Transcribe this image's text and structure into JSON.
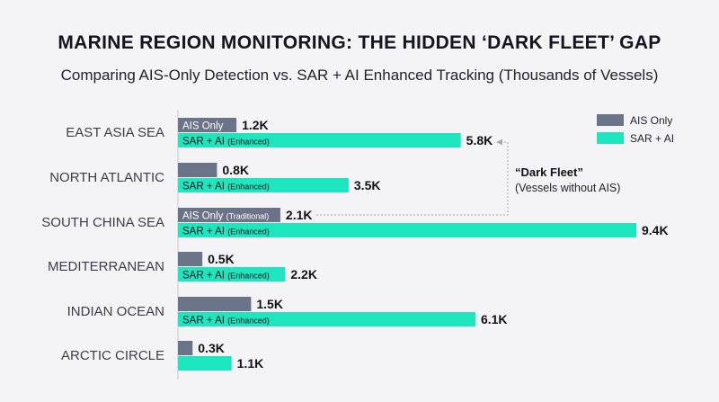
{
  "chart_data": {
    "type": "bar",
    "orientation": "horizontal",
    "title": "MARINE REGION MONITORING: THE HIDDEN ‘DARK FLEET’ GAP",
    "subtitle": "Comparing AIS-Only Detection vs. SAR + AI Enhanced Tracking (Thousands of Vessels)",
    "categories": [
      "EAST ASIA SEA",
      "NORTH ATLANTIC",
      "SOUTH CHINA SEA",
      "MEDITERRANEAN",
      "INDIAN OCEAN",
      "ARCTIC CIRCLE"
    ],
    "series": [
      {
        "name": "AIS Only",
        "color": "#6b7388",
        "values": [
          1.2,
          0.8,
          2.1,
          0.5,
          1.5,
          0.3
        ],
        "value_labels": [
          "1.2K",
          "0.8K",
          "2.1K",
          "0.5K",
          "1.5K",
          "0.3K"
        ],
        "bar_labels": [
          "AIS Only",
          "",
          "AIS Only (Traditional)",
          "",
          "",
          ""
        ]
      },
      {
        "name": "SAR + AI",
        "color": "#1de5be",
        "values": [
          5.8,
          3.5,
          9.4,
          2.2,
          6.1,
          1.1
        ],
        "value_labels": [
          "5.8K",
          "3.5K",
          "9.4K",
          "2.2K",
          "6.1K",
          "1.1K"
        ],
        "bar_labels": [
          "SAR + AI (Enhanced)",
          "SAR + AI (Enhanced)",
          "SAR + AI (Enhanced)",
          "SAR + AI (Enhanced)",
          "SAR + AI (Enhanced)",
          ""
        ]
      }
    ],
    "xlim": [
      0,
      9.4
    ],
    "grid": false,
    "legend": "top-right",
    "annotation": {
      "title": "“Dark Fleet”",
      "text": "(Vessels without AIS)"
    }
  }
}
